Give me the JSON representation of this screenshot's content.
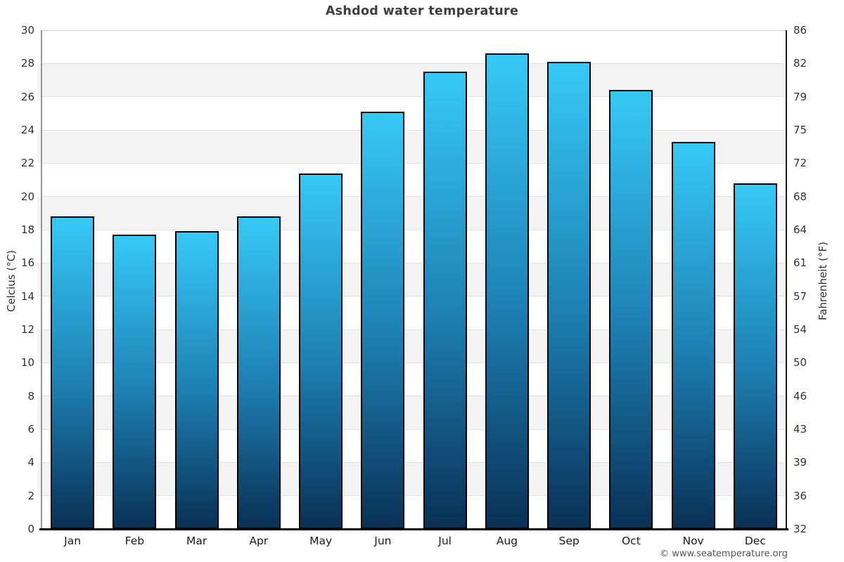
{
  "title": "Ashdod water temperature",
  "axes": {
    "left_label": "Celcius (°C)",
    "right_label": "Fahrenheit (°F)"
  },
  "footer": {
    "copyright": "© www.seatemperature.org"
  },
  "colors": {
    "bar_gradient_top": "#36c9f5",
    "bar_gradient_mid": "#1e82b6",
    "bar_gradient_bottom": "#093156",
    "bar_border": "#000000",
    "band_fill": "#f3f3f3",
    "gridline": "#e3e3e3",
    "left_spine": "#969696",
    "right_spine": "#1a1a1a",
    "bottom_spine": "#000000",
    "title_text": "#3f3f3f",
    "tick_text": "#333333"
  },
  "chart_data": {
    "type": "bar",
    "title": "Ashdod water temperature",
    "categories": [
      "Jan",
      "Feb",
      "Mar",
      "Apr",
      "May",
      "Jun",
      "Jul",
      "Aug",
      "Sep",
      "Oct",
      "Nov",
      "Dec"
    ],
    "values": [
      18.8,
      17.7,
      17.9,
      18.8,
      21.4,
      25.1,
      27.5,
      28.6,
      28.1,
      26.4,
      23.3,
      20.8
    ],
    "series_name": "Water temperature",
    "xlabel": "",
    "ylabel_left": "Celcius (°C)",
    "ylabel_right": "Fahrenheit (°F)",
    "ylim_celsius": [
      0,
      30
    ],
    "celsius_ticks": [
      0,
      2,
      4,
      6,
      8,
      10,
      12,
      14,
      16,
      18,
      20,
      22,
      24,
      26,
      28,
      30
    ],
    "fahrenheit_ticks": [
      32,
      36,
      39,
      43,
      46,
      50,
      54,
      57,
      61,
      64,
      68,
      72,
      75,
      79,
      82,
      86
    ],
    "grid": "horizontal alternating bands every 2°C, light gray",
    "legend_position": "none"
  }
}
